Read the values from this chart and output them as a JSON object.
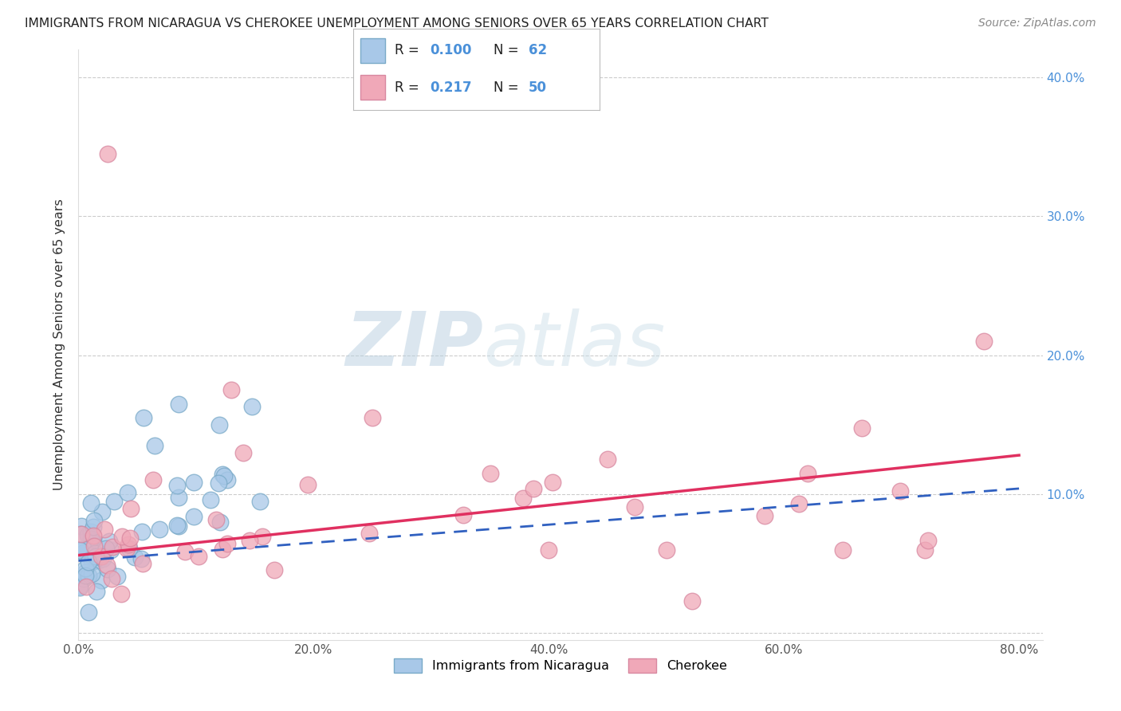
{
  "title": "IMMIGRANTS FROM NICARAGUA VS CHEROKEE UNEMPLOYMENT AMONG SENIORS OVER 65 YEARS CORRELATION CHART",
  "source": "Source: ZipAtlas.com",
  "ylabel": "Unemployment Among Seniors over 65 years",
  "watermark_zip": "ZIP",
  "watermark_atlas": "atlas",
  "xlim": [
    0.0,
    0.82
  ],
  "ylim": [
    -0.005,
    0.42
  ],
  "yticks": [
    0.0,
    0.1,
    0.2,
    0.3,
    0.4
  ],
  "ytick_labels_right": [
    "",
    "10.0%",
    "20.0%",
    "30.0%",
    "40.0%"
  ],
  "xticks": [
    0.0,
    0.2,
    0.4,
    0.6,
    0.8
  ],
  "xtick_labels": [
    "0.0%",
    "20.0%",
    "40.0%",
    "60.0%",
    "80.0%"
  ],
  "blue_fill": "#a8c8e8",
  "blue_edge": "#7aaac8",
  "pink_fill": "#f0a8b8",
  "pink_edge": "#d888a0",
  "blue_line_color": "#3060c0",
  "pink_line_color": "#e03060",
  "grid_color": "#cccccc",
  "tick_color": "#4a90d9",
  "bg_color": "#ffffff",
  "legend_label1": "Immigrants from Nicaragua",
  "legend_label2": "Cherokee",
  "R_blue": 0.1,
  "N_blue": 62,
  "R_pink": 0.217,
  "N_pink": 50
}
